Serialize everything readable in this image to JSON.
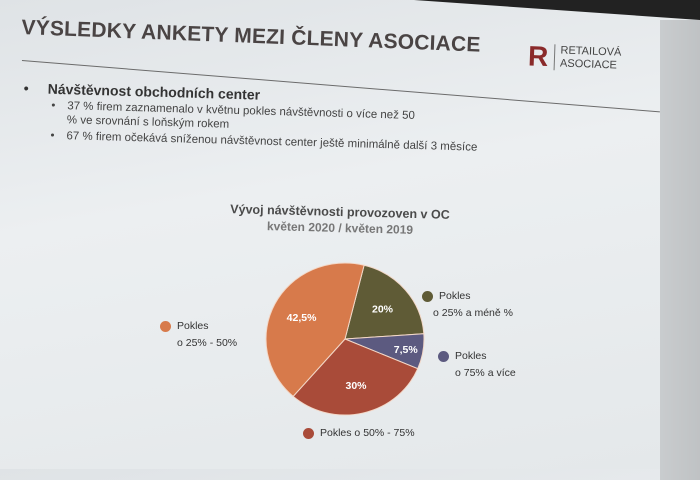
{
  "slide": {
    "title": "VÝSLEDKY ANKETY MEZI ČLENY ASOCIACE",
    "logo": {
      "line1": "RETAILOVÁ",
      "line2": "ASOCIACE"
    },
    "bullet": "Návštěvnost obchodních center",
    "subbullets": [
      "37 % firem zaznamenalo v květnu pokles návštěvnosti o více než 50 % ve srovnání s loňským rokem",
      "67 % firem očekává sníženou návštěvnost center ještě minimálně další 3 měsíce"
    ],
    "bullet_symbol": "•"
  },
  "chart_data": {
    "type": "pie",
    "title": "Vývoj návštěvnosti provozoven v OC",
    "subtitle": "květen 2020 / květen 2019",
    "slices": [
      {
        "label": "Pokles o 25% a méně %",
        "legend_line1": "Pokles",
        "legend_line2": "o 25% a méně %",
        "value": 20,
        "data_label": "20%",
        "color": "#5f5b36"
      },
      {
        "label": "Pokles o 75% a více",
        "legend_line1": "Pokles",
        "legend_line2": "o 75% a více",
        "value": 7.5,
        "data_label": "7,5%",
        "color": "#5c5a80"
      },
      {
        "label": "Pokles o 50% - 75%",
        "legend_line1": "Pokles o 50% - 75%",
        "legend_line2": "",
        "value": 30,
        "data_label": "30%",
        "color": "#a94b39"
      },
      {
        "label": "Pokles o 25% - 50%",
        "legend_line1": "Pokles",
        "legend_line2": "o 25% - 50%",
        "value": 42.5,
        "data_label": "42,5%",
        "color": "#d77a4b"
      }
    ],
    "legend_placement": "around"
  }
}
